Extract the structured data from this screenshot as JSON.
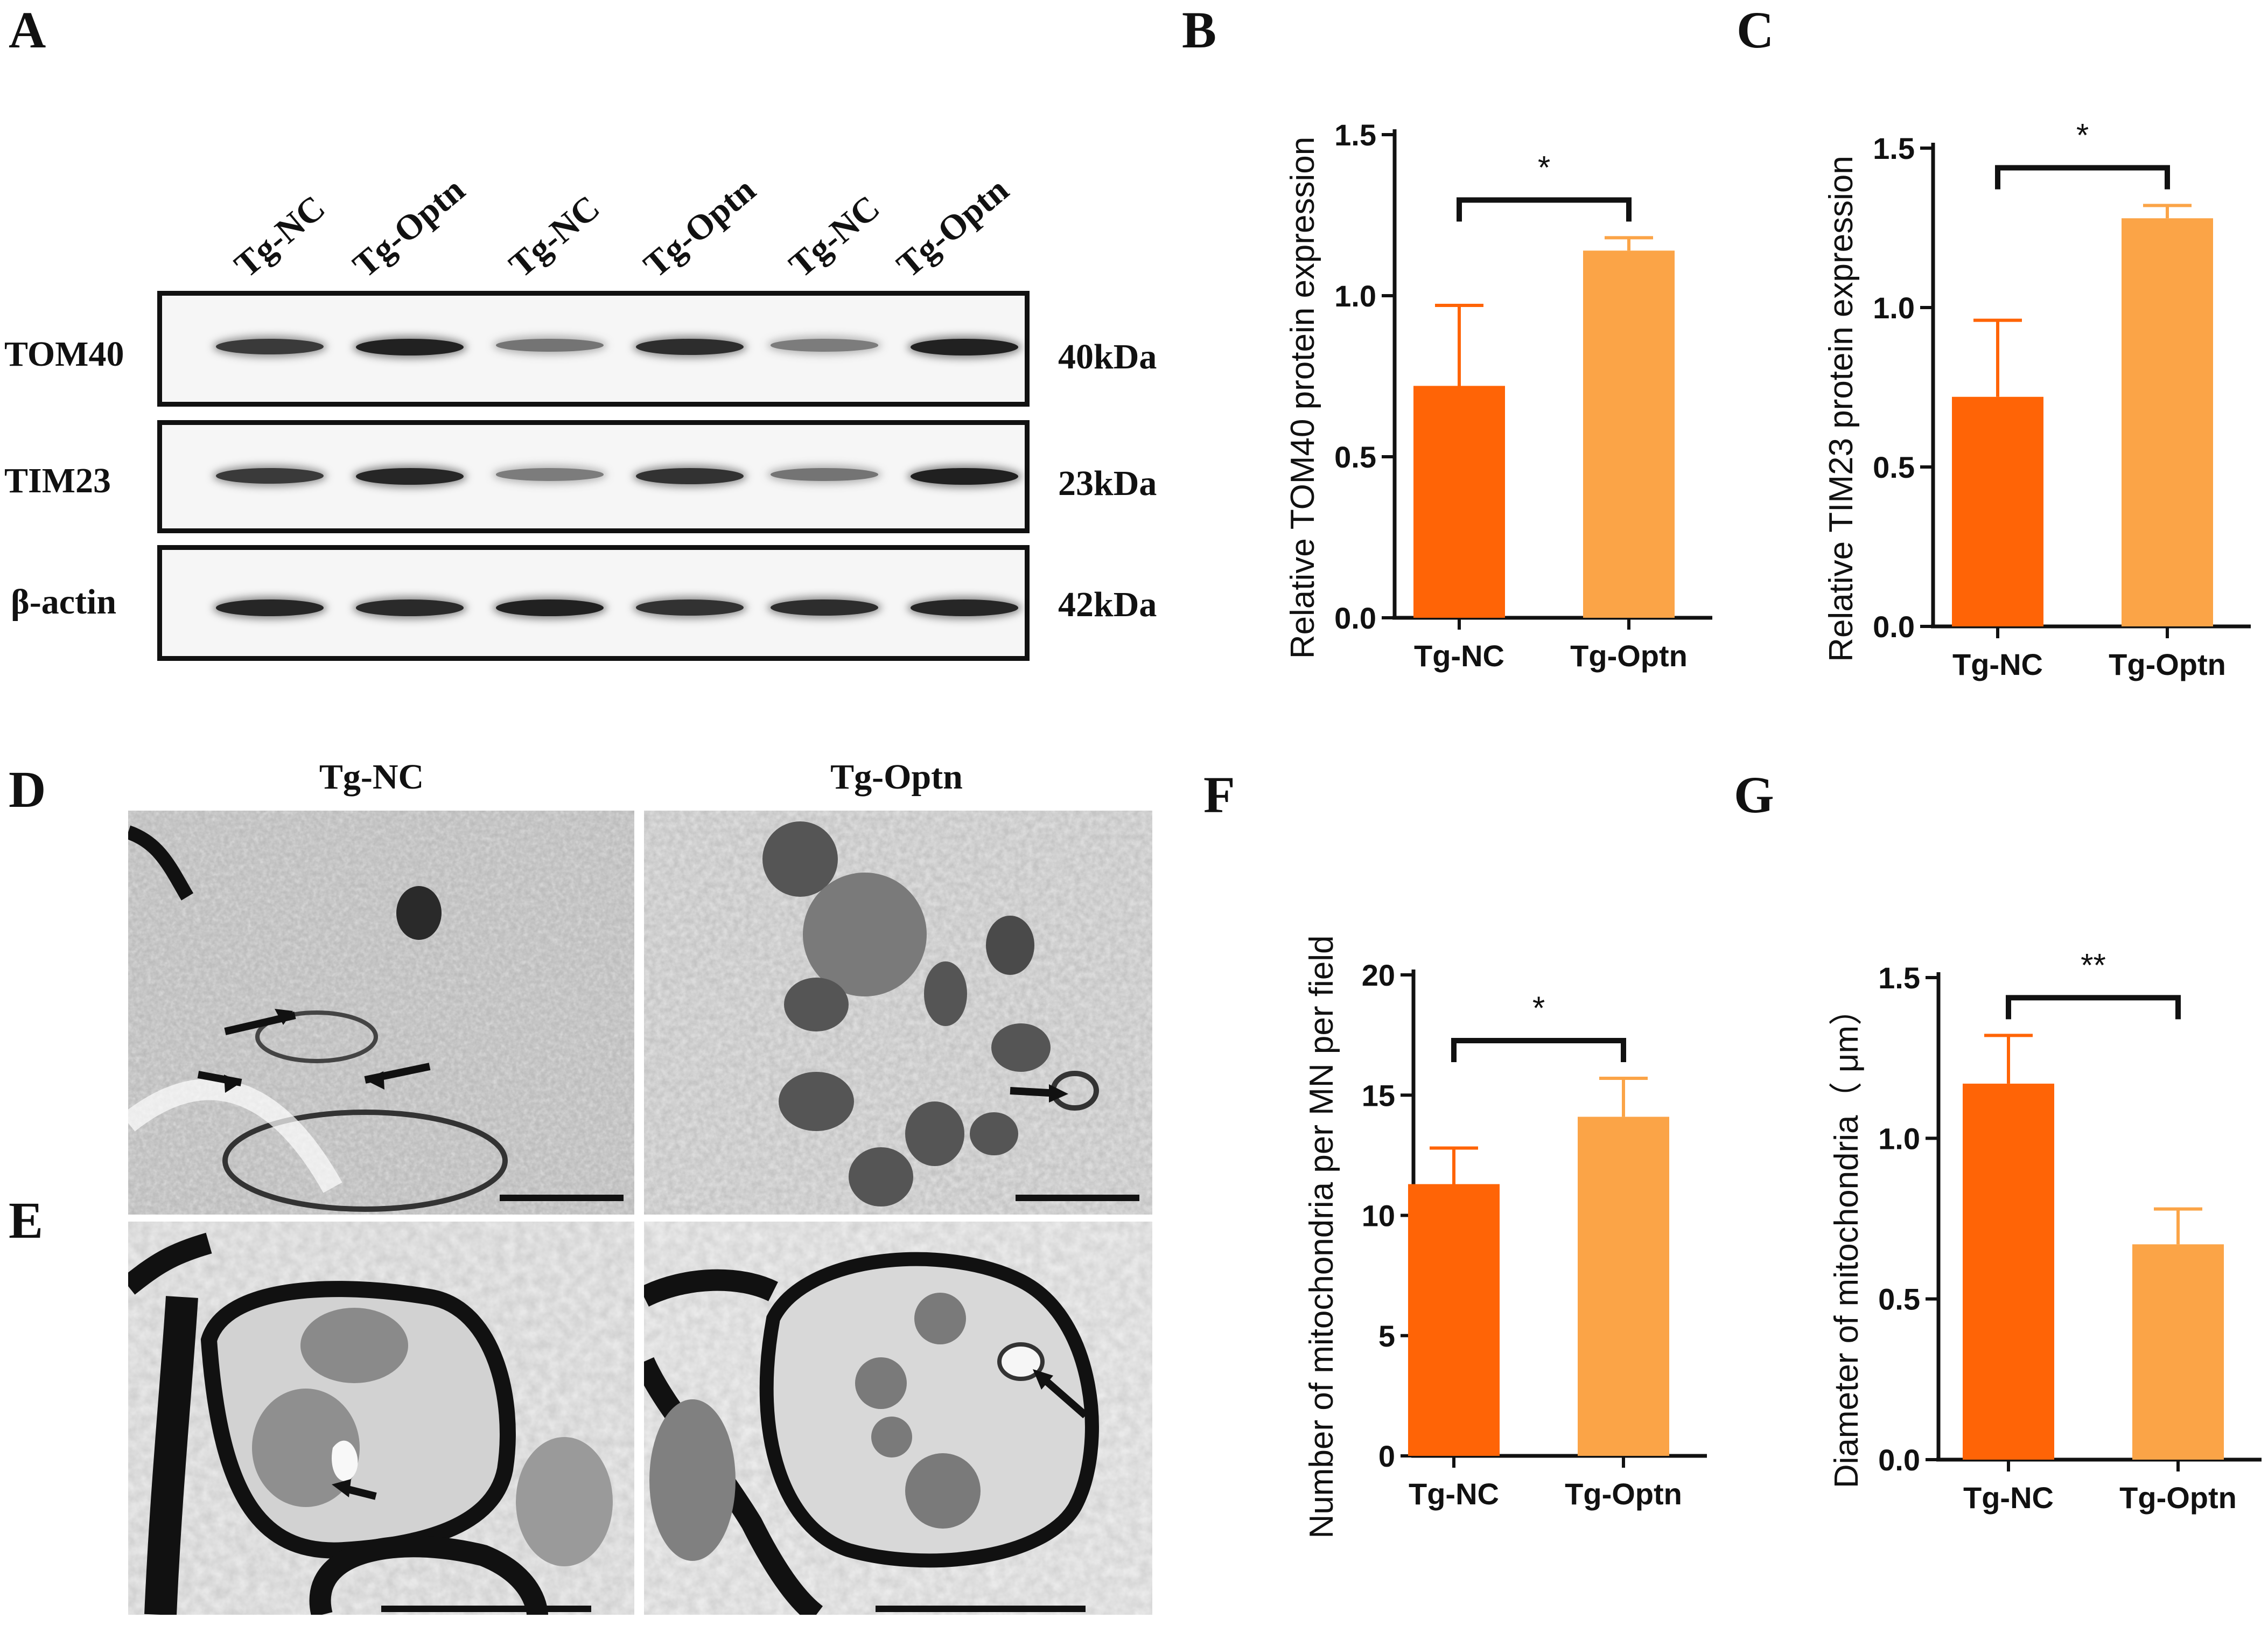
{
  "panels": {
    "a": {
      "letter": "A"
    },
    "b": {
      "letter": "B"
    },
    "c": {
      "letter": "C"
    },
    "d": {
      "letter": "D",
      "titles": [
        "Tg-NC",
        "Tg-Optn"
      ]
    },
    "e": {
      "letter": "E"
    },
    "f": {
      "letter": "F"
    },
    "g": {
      "letter": "G"
    }
  },
  "western_blot": {
    "lanes": [
      "Tg-NC",
      "Tg-Optn",
      "Tg-NC",
      "Tg-Optn",
      "Tg-NC",
      "Tg-Optn"
    ],
    "rows": [
      {
        "name": "TOM40",
        "kda": "40kDa",
        "band_intensity": [
          0.8,
          0.95,
          0.45,
          0.88,
          0.4,
          0.95
        ]
      },
      {
        "name": "TIM23",
        "kda": "23kDa",
        "band_intensity": [
          0.8,
          0.92,
          0.4,
          0.85,
          0.45,
          0.96
        ]
      },
      {
        "name": "β-actin",
        "kda": "42kDa",
        "band_intensity": [
          0.92,
          0.9,
          0.95,
          0.85,
          0.88,
          0.92
        ]
      }
    ]
  },
  "colors": {
    "tg_nc": "#FF6406",
    "tg_optn": "#FBA447",
    "axis": "#111111"
  },
  "chart_data": [
    {
      "panel": "B",
      "type": "bar",
      "categories": [
        "Tg-NC",
        "Tg-Optn"
      ],
      "values": [
        0.72,
        1.14
      ],
      "errors": [
        0.25,
        0.04
      ],
      "ylabel": "Relative TOM40 protein expression",
      "xlabel": "",
      "ylim": [
        0,
        1.5
      ],
      "yticks": [
        "0.0",
        "0.5",
        "1.0",
        "1.5"
      ],
      "significance": "*"
    },
    {
      "panel": "C",
      "type": "bar",
      "categories": [
        "Tg-NC",
        "Tg-Optn"
      ],
      "values": [
        0.72,
        1.28
      ],
      "errors": [
        0.24,
        0.04
      ],
      "ylabel": "Relative TIM23 protein expression",
      "xlabel": "",
      "ylim": [
        0,
        1.5
      ],
      "yticks": [
        "0.0",
        "0.5",
        "1.0",
        "1.5"
      ],
      "significance": "*"
    },
    {
      "panel": "F",
      "type": "bar",
      "categories": [
        "Tg-NC",
        "Tg-Optn"
      ],
      "values": [
        11.3,
        14.1
      ],
      "errors": [
        1.5,
        1.6
      ],
      "ylabel": "Number of mitochondria per MN per field",
      "xlabel": "",
      "ylim": [
        0,
        20
      ],
      "yticks": [
        "0",
        "5",
        "10",
        "15",
        "20"
      ],
      "significance": "*"
    },
    {
      "panel": "G",
      "type": "bar",
      "categories": [
        "Tg-NC",
        "Tg-Optn"
      ],
      "values": [
        1.17,
        0.67
      ],
      "errors": [
        0.15,
        0.11
      ],
      "ylabel": "Diameter of mitochondria（ μm）",
      "xlabel": "",
      "ylim": [
        0,
        1.5
      ],
      "yticks": [
        "0.0",
        "0.5",
        "1.0",
        "1.5"
      ],
      "significance": "**"
    }
  ]
}
